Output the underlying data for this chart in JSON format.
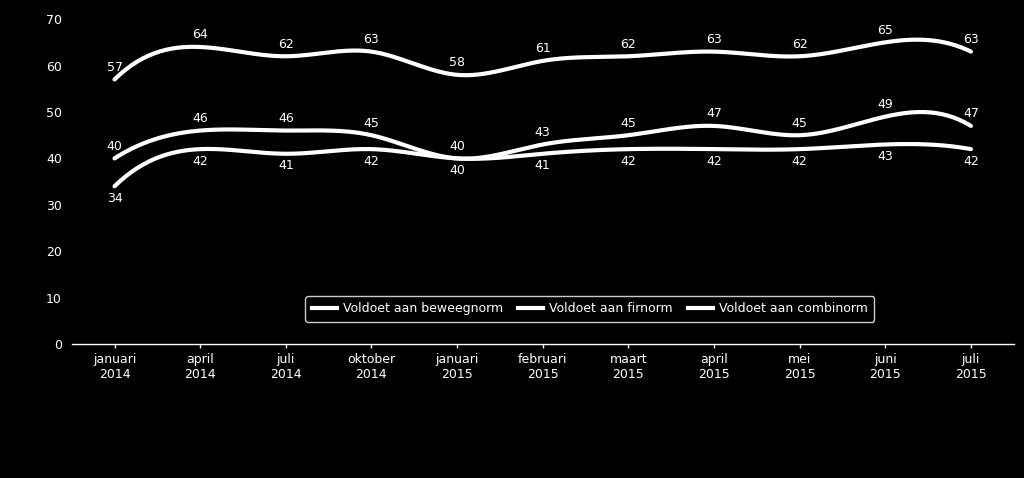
{
  "x_labels": [
    "januari\n2014",
    "april\n2014",
    "juli\n2014",
    "oktober\n2014",
    "januari\n2015",
    "februari\n2015",
    "maart\n2015",
    "april\n2015",
    "mei\n2015",
    "juni\n2015",
    "juli\n2015"
  ],
  "beweegnorm": [
    57,
    64,
    62,
    63,
    58,
    61,
    62,
    63,
    62,
    65,
    63
  ],
  "fitnorm": [
    40,
    46,
    46,
    45,
    40,
    43,
    45,
    47,
    45,
    49,
    47
  ],
  "combinorm": [
    34,
    42,
    41,
    42,
    40,
    41,
    42,
    42,
    42,
    43,
    42
  ],
  "line_color": "#ffffff",
  "bg_color": "#000000",
  "text_color": "#ffffff",
  "ylim": [
    0,
    70
  ],
  "yticks": [
    0,
    10,
    20,
    30,
    40,
    50,
    60,
    70
  ],
  "legend_labels": [
    "Voldoet aan beweegnorm",
    "Voldoet aan firnorm",
    "Voldoet aan combinorm"
  ],
  "line_width": 3.0,
  "label_fontsize": 9,
  "tick_fontsize": 9,
  "legend_fontsize": 9
}
